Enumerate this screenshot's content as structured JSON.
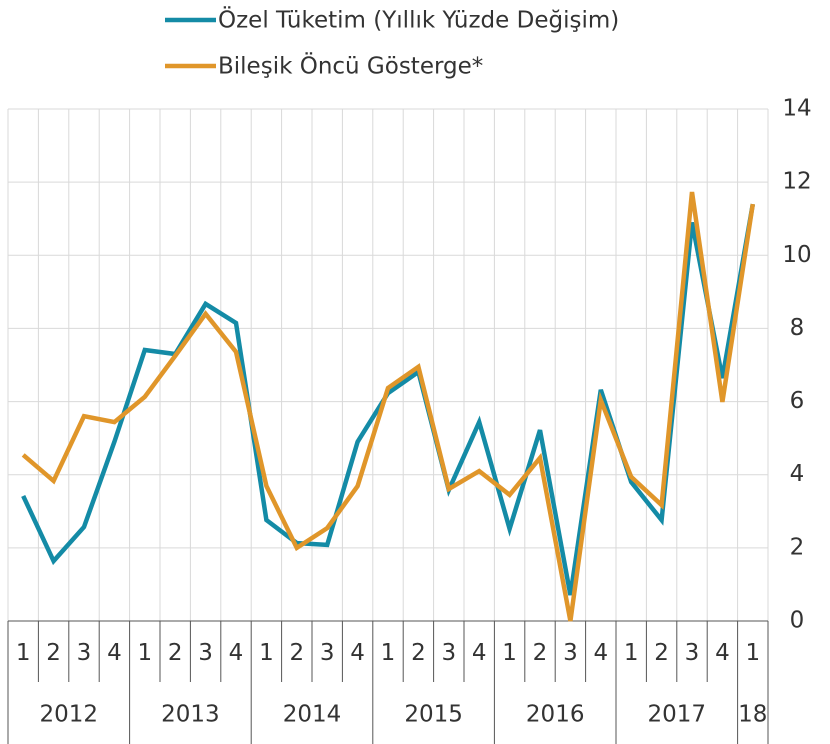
{
  "chart_data": {
    "type": "line",
    "categories": [
      "1",
      "2",
      "3",
      "4",
      "1",
      "2",
      "3",
      "4",
      "1",
      "2",
      "3",
      "4",
      "1",
      "2",
      "3",
      "4",
      "1",
      "2",
      "3",
      "4",
      "1",
      "2",
      "3",
      "4",
      "1"
    ],
    "x_groups": [
      {
        "label": "2012",
        "span": 4
      },
      {
        "label": "2013",
        "span": 4
      },
      {
        "label": "2014",
        "span": 4
      },
      {
        "label": "2015",
        "span": 4
      },
      {
        "label": "2016",
        "span": 4
      },
      {
        "label": "2017",
        "span": 4
      },
      {
        "label": "18",
        "span": 1
      }
    ],
    "series": [
      {
        "name": "Özel Tüketim (Yıllık Yüzde Değişim)",
        "color": "#148ba6",
        "values": [
          3.42,
          1.64,
          2.57,
          4.9,
          7.41,
          7.3,
          8.67,
          8.15,
          2.76,
          2.13,
          2.08,
          4.9,
          6.23,
          6.81,
          3.58,
          5.44,
          2.52,
          5.22,
          0.71,
          6.32,
          3.8,
          2.76,
          10.9,
          6.64,
          11.4
        ]
      },
      {
        "name": "Bileşik Öncü Gösterge*",
        "color": "#e0962a",
        "values": [
          4.54,
          3.83,
          5.6,
          5.44,
          6.13,
          7.25,
          8.4,
          7.36,
          3.69,
          2.0,
          2.54,
          3.69,
          6.37,
          6.95,
          3.61,
          4.1,
          3.45,
          4.46,
          0,
          6.04,
          3.94,
          3.17,
          11.73,
          5.99,
          11.4
        ]
      }
    ],
    "ylim": [
      0,
      14
    ],
    "yticks": [
      0,
      2,
      4,
      6,
      8,
      10,
      12,
      14
    ],
    "grid": true,
    "legend": "top"
  }
}
